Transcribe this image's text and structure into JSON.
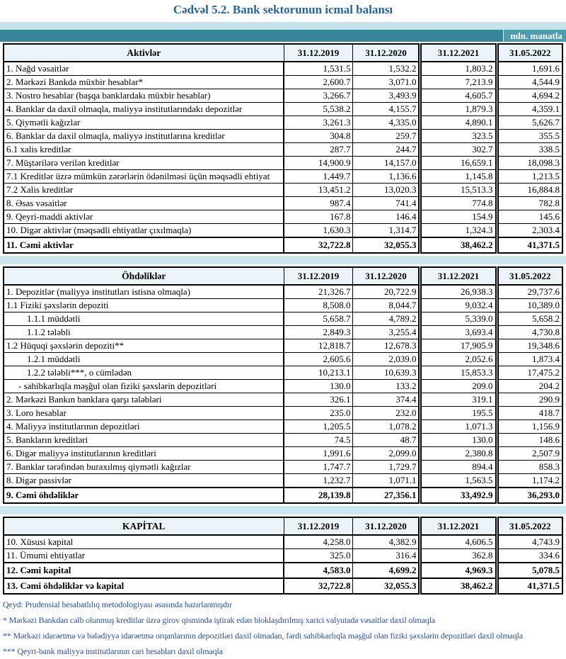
{
  "title": "Cədvəl 5.2. Bank sektorunun icmal balansı",
  "unit": "mln. manatla",
  "columns": [
    "31.12.2019",
    "31.12.2020",
    "31.12.2021",
    "31.05.2022"
  ],
  "colors": {
    "title_blue": "#2465a8",
    "band_light_teal": "#c6e3ec",
    "band_dark_teal": "#37859b",
    "band_dark_teal_right": "#4e9cb0",
    "header_cell_bg": "#ebf5f9",
    "section_gap_band": "#cde7f0",
    "footnote_blue": "#2750a8"
  },
  "tables": [
    {
      "title": "Aktivlər",
      "rows": [
        {
          "label": "1. Nağd vəsaitlər",
          "values": [
            "1,531.5",
            "1,532.2",
            "1,803.2",
            "1,691.6"
          ]
        },
        {
          "label": "2. Mərkəzi Bankda müxbir hesablar*",
          "values": [
            "2,600.7",
            "3,071.0",
            "7,213.9",
            "4,544.9"
          ]
        },
        {
          "label": "3. Nostro hesablar (başqa banklardakı müxbir hesablar)",
          "values": [
            "3,266.7",
            "3,493.9",
            "4,605.7",
            "4,694.2"
          ]
        },
        {
          "label": "4. Banklar da daxil olmaqla, maliyyə institutlarındakı depozitlər",
          "values": [
            "5,538.2",
            "4,155.7",
            "1,879.3",
            "4,359.1"
          ]
        },
        {
          "label": "5. Qiymətli kağızlar",
          "values": [
            "3,261.3",
            "4,335.0",
            "4,890.1",
            "5,626.7"
          ]
        },
        {
          "label": "6. Banklar da daxil olmaqla, maliyyə institutlarına kreditlər",
          "values": [
            "304.8",
            "259.7",
            "323.5",
            "355.5"
          ]
        },
        {
          "label": "6.1 xalis kreditlər",
          "values": [
            "287.7",
            "244.7",
            "302.7",
            "338.5"
          ]
        },
        {
          "label": "7. Müştərilərə verilən kreditlər",
          "values": [
            "14,900.9",
            "14,157.0",
            "16,659.1",
            "18,098.3"
          ]
        },
        {
          "label": "7.1 Kreditlər üzrə mümkün zərərlərin ödənilməsi üçün məqsədli ehtiyat",
          "values": [
            "1,449.7",
            "1,136.6",
            "1,145.8",
            "1,213.5"
          ]
        },
        {
          "label": "7.2 Xalis kreditlər",
          "values": [
            "13,451.2",
            "13,020.3",
            "15,513.3",
            "16,884.8"
          ]
        },
        {
          "label": "8.  Əsas vəsaitlər",
          "values": [
            "987.4",
            "741.4",
            "774.8",
            "782.8"
          ]
        },
        {
          "label": "9. Qeyri-maddi aktivlər",
          "values": [
            "167.8",
            "146.4",
            "154.9",
            "145.6"
          ]
        },
        {
          "label": "10. Digər aktivlər (məqsədli ehtiyatlar çıxılmaqla)",
          "values": [
            "1,630.3",
            "1,314.7",
            "1,324.3",
            "2,303.4"
          ]
        },
        {
          "label": "11. Cəmi aktivlər",
          "values": [
            "32,722.8",
            "32,055.3",
            "38,462.2",
            "41,371.5"
          ],
          "bold": true
        }
      ]
    },
    {
      "title": "Öhdəliklər",
      "rows": [
        {
          "label": "1. Depozitlər (maliyyə institutları istisna olmaqla)",
          "values": [
            "21,326.7",
            "20,722.9",
            "26,938.3",
            "29,737.6"
          ]
        },
        {
          "label": "1.1 Fiziki şəxslərin depoziti",
          "values": [
            "8,508.0",
            "8,044.7",
            "9,032.4",
            "10,389.0"
          ]
        },
        {
          "label": "1.1.1 müddətli",
          "values": [
            "5,658.7",
            "4,789.2",
            "5,339.0",
            "5,658.2"
          ],
          "indent": 1
        },
        {
          "label": "1.1.2 tələbli",
          "values": [
            "2,849.3",
            "3,255.4",
            "3,693.4",
            "4,730.8"
          ],
          "indent": 1
        },
        {
          "label": "1.2 Hüquqi şəxslərin depoziti**",
          "values": [
            "12,818.7",
            "12,678.3",
            "17,905.9",
            "19,348.6"
          ]
        },
        {
          "label": "1.2.1 müddətli",
          "values": [
            "2,605.6",
            "2,039.0",
            "2,052.6",
            "1,873.4"
          ],
          "indent": 1
        },
        {
          "label": "1.2.2 tələbli***, o cümlədən",
          "values": [
            "10,213.1",
            "10,639.3",
            "15,853.3",
            "17,475.2"
          ],
          "indent": 1
        },
        {
          "label": "- sahibkarlıqla məşğul olan fiziki şəxslərin depozitləri",
          "values": [
            "130.0",
            "133.2",
            "209.0",
            "204.2"
          ],
          "indent": 2
        },
        {
          "label": "2. Mərkəzi Bankın banklara qarşı tələbləri",
          "values": [
            "326.1",
            "374.4",
            "319.1",
            "290.9"
          ]
        },
        {
          "label": "3. Loro hesablar",
          "values": [
            "235.0",
            "232.0",
            "195.5",
            "418.7"
          ]
        },
        {
          "label": "4. Maliyyə institutlarının  depozitləri",
          "values": [
            "1,205.5",
            "1,078.2",
            "1,071.3",
            "1,156.9"
          ]
        },
        {
          "label": "5. Bankların kreditləri",
          "values": [
            "74.5",
            "48.7",
            "130.0",
            "148.6"
          ]
        },
        {
          "label": "6. Digər maliyyə institutlarının kreditləri",
          "values": [
            "1,991.6",
            "2,099.0",
            "2,380.8",
            "2,507.9"
          ]
        },
        {
          "label": "7. Banklar tərəfindən buraxılmış qiymətli kağızlar",
          "values": [
            "1,747.7",
            "1,729.7",
            "894.4",
            "858.3"
          ]
        },
        {
          "label": "8. Digər passivlər",
          "values": [
            "1,232.7",
            "1,071.1",
            "1,563.5",
            "1,174.2"
          ]
        },
        {
          "label": "9. Cəmi öhdəliklər",
          "values": [
            "28,139.8",
            "27,356.1",
            "33,492.9",
            "36,293.0"
          ],
          "bold": true
        }
      ]
    },
    {
      "title": "KAPİTAL",
      "rows": [
        {
          "label": "10. Xüsusi kapital",
          "values": [
            "4,258.0",
            "4,382.9",
            "4,606.5",
            "4,743.9"
          ]
        },
        {
          "label": "11. Ümumi ehtiyatlar",
          "values": [
            "325.0",
            "316.4",
            "362.8",
            "334.6"
          ]
        },
        {
          "label": "12. Cəmi kapital",
          "values": [
            "4,583.0",
            "4,699.2",
            "4,969.3",
            "5,078.5"
          ],
          "bold": true
        },
        {
          "label": "13. Cəmi öhdəliklər və kapital",
          "values": [
            "32,722.8",
            "32,055.3",
            "38,462.2",
            "41,371.5"
          ],
          "bold": true
        }
      ]
    }
  ],
  "notes": [
    "Qeyd: Prudensial hesabatlılıq metodologiyası əsasında hazırlanmışdır",
    "* Mərkəzi Bankdan cəlb olunmuş kreditlər üzrə girov qismində iştirak edən bloklaşdırılmış xarici valyutada vəsaitlər daxil olmaqla",
    "** Mərkəzi idarəetmə və bələdiyyə idarəetmə orqanlarının depozitləri daxil olmadan, fərdi sahibkarlıqla məşğul olan fiziki şəxslərin depozitləri daxil olmaqla",
    "*** Qeyri-bank maliyyə institutlarının cari hesabları daxil olmaqla"
  ]
}
